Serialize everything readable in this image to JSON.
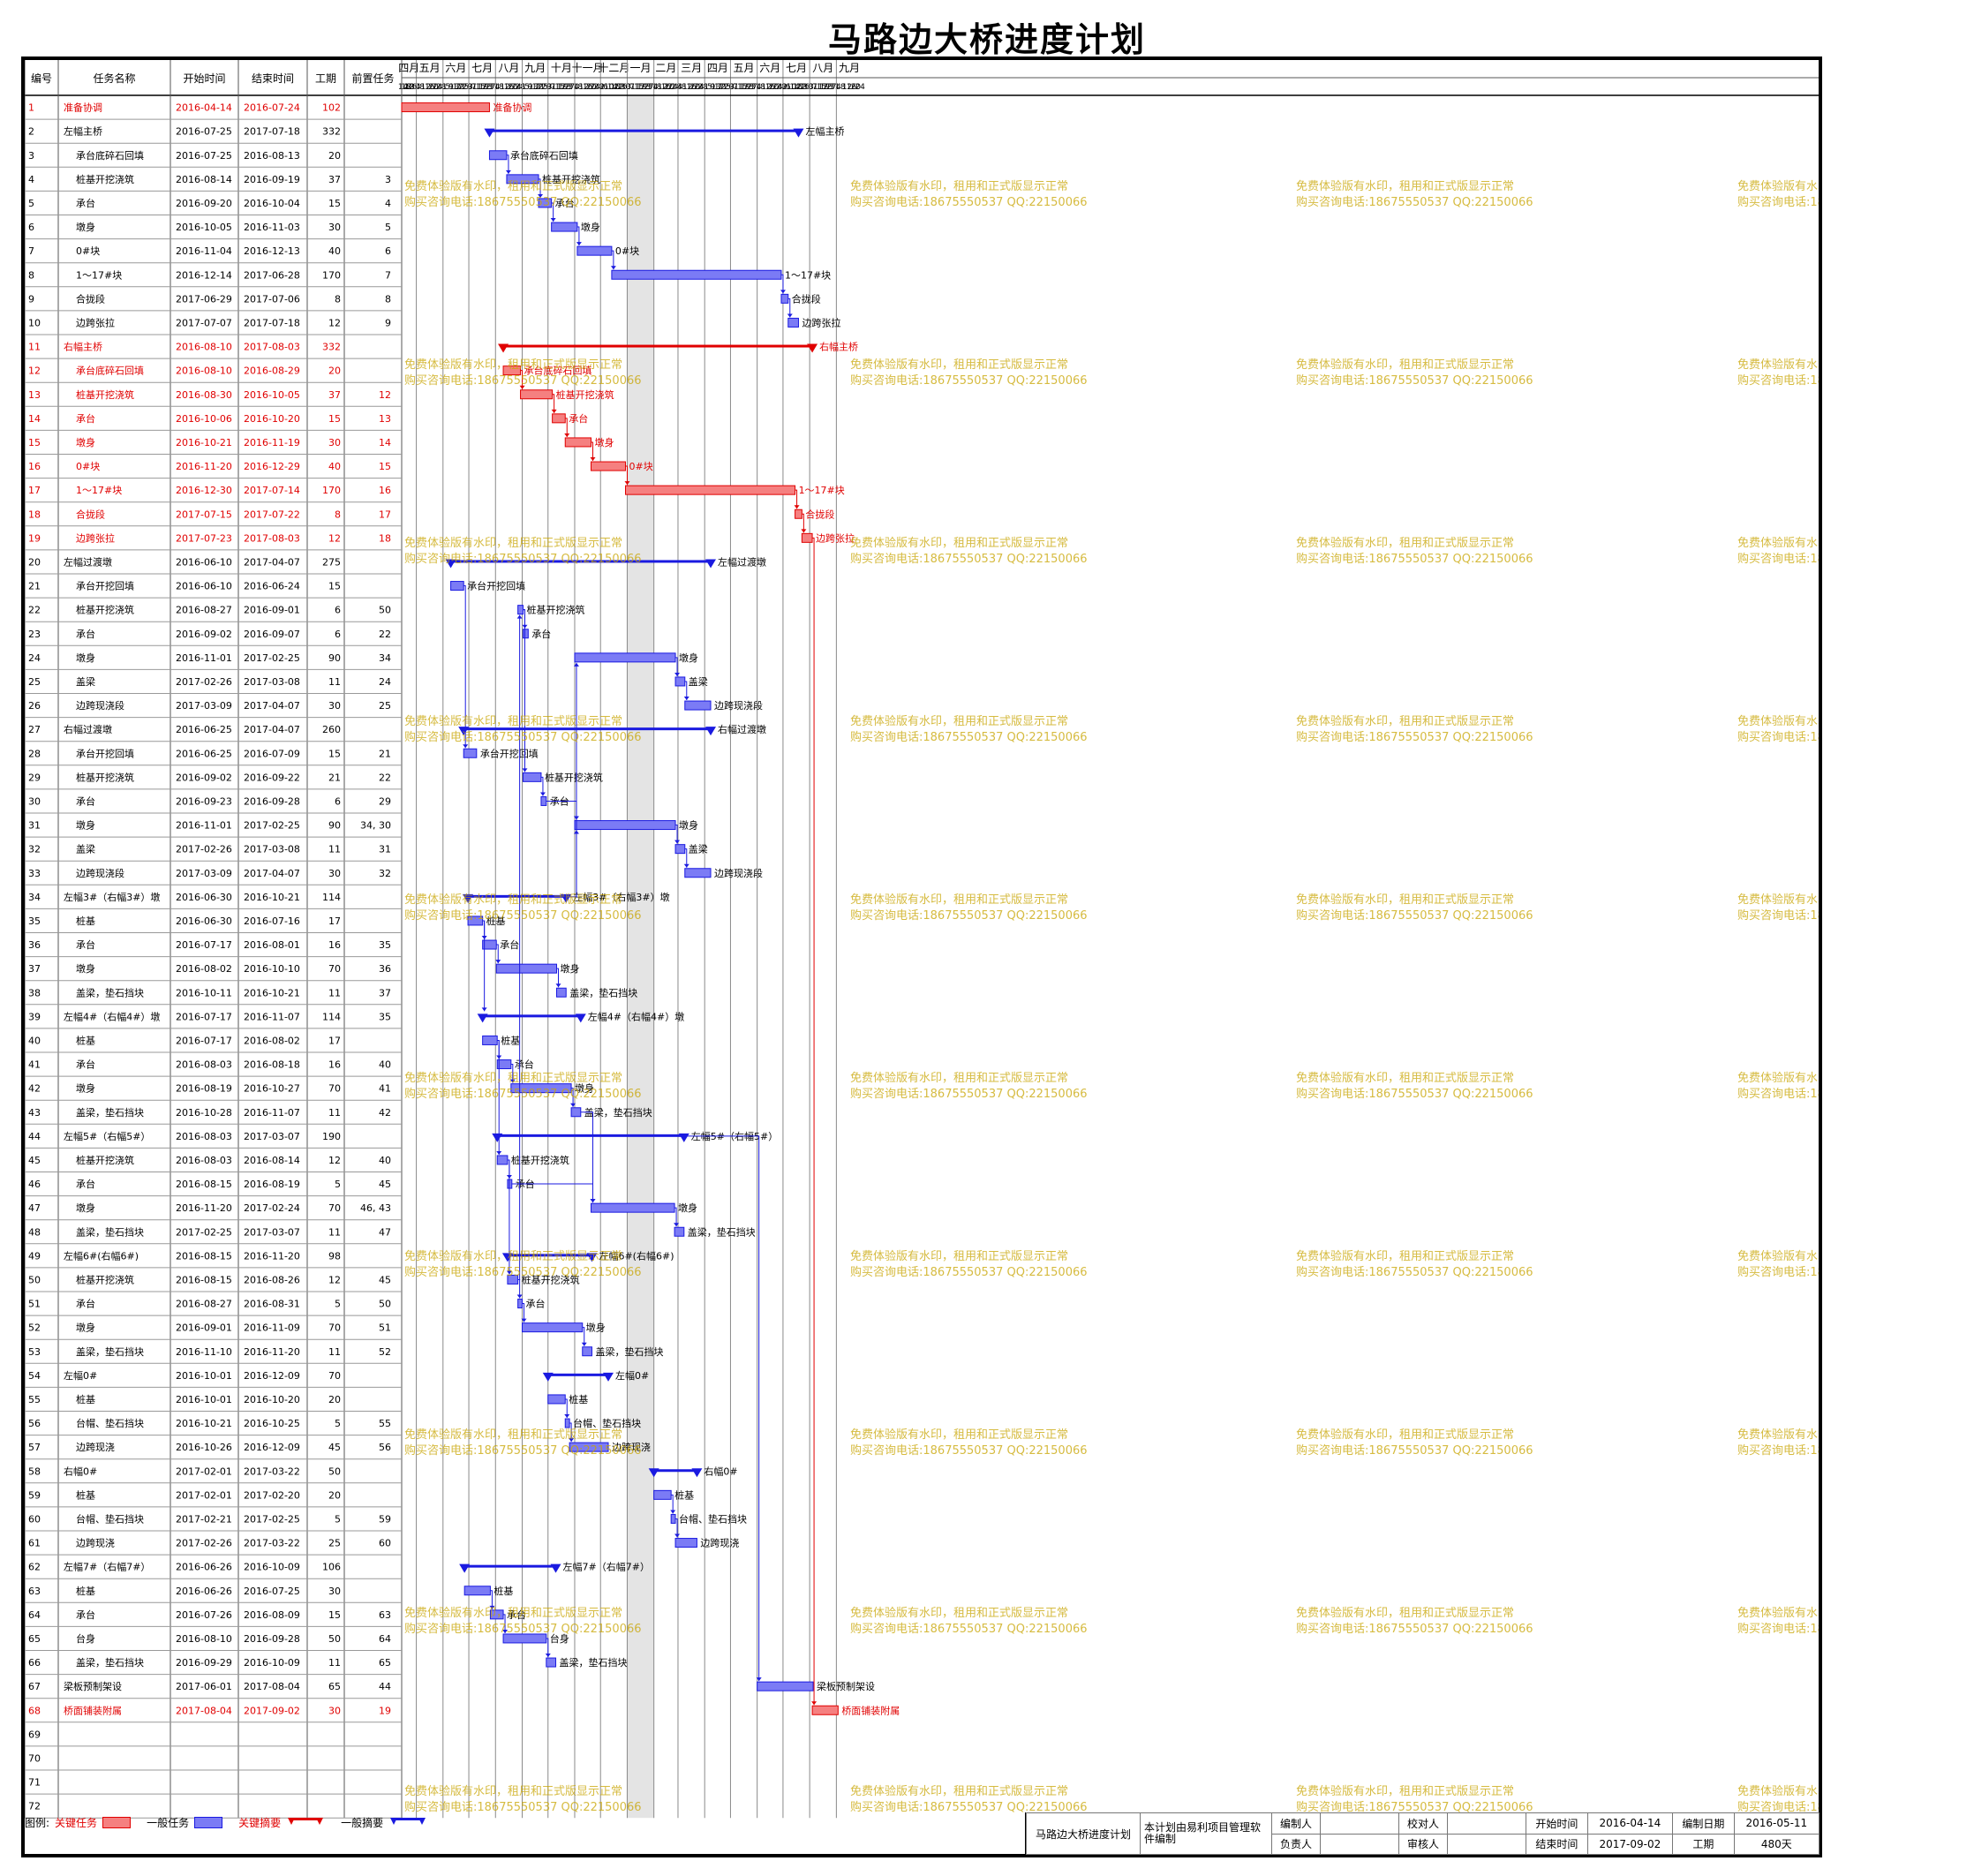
{
  "title": "马路边大桥进度计划",
  "columns": [
    "编号",
    "任务名称",
    "开始时间",
    "结束时间",
    "工期",
    "前置任务"
  ],
  "chart_data": {
    "type": "gantt",
    "timeline_start": "2016-04-14",
    "months": [
      {
        "label": "四月",
        "ticks": [
          "14",
          "18",
          "22",
          "26",
          "30"
        ]
      },
      {
        "label": "五月",
        "ticks": [
          "4",
          "8",
          "12",
          "16",
          "20",
          "24",
          "28"
        ]
      },
      {
        "label": "六月",
        "ticks": [
          "1",
          "5",
          "9",
          "13",
          "17",
          "21",
          "25",
          "29"
        ]
      },
      {
        "label": "七月",
        "ticks": [
          "3",
          "7",
          "11",
          "15",
          "19",
          "23",
          "27",
          "31"
        ]
      },
      {
        "label": "八月",
        "ticks": [
          "4",
          "8",
          "12",
          "16",
          "20",
          "24",
          "28"
        ]
      },
      {
        "label": "九月",
        "ticks": [
          "1",
          "5",
          "9",
          "13",
          "17",
          "21",
          "25",
          "29"
        ]
      },
      {
        "label": "十月",
        "ticks": [
          "3",
          "7",
          "11",
          "15",
          "19",
          "23",
          "27",
          "31"
        ]
      },
      {
        "label": "十一月",
        "ticks": [
          "4",
          "8",
          "12",
          "16",
          "20",
          "24",
          "28"
        ]
      },
      {
        "label": "十二月",
        "ticks": [
          "2",
          "6",
          "10",
          "14",
          "18",
          "22",
          "26",
          "30"
        ]
      },
      {
        "label": "一月",
        "ticks": [
          "3",
          "7",
          "11",
          "15",
          "19",
          "23",
          "27",
          "31"
        ]
      },
      {
        "label": "二月",
        "ticks": [
          "4",
          "8",
          "12",
          "16",
          "20",
          "24",
          "28"
        ]
      },
      {
        "label": "三月",
        "ticks": [
          "4",
          "8",
          "12",
          "16",
          "20",
          "24",
          "28"
        ]
      },
      {
        "label": "四月",
        "ticks": [
          "1",
          "5",
          "9",
          "13",
          "17",
          "21",
          "25",
          "29"
        ]
      },
      {
        "label": "五月",
        "ticks": [
          "3",
          "7",
          "11",
          "15",
          "19",
          "23",
          "27",
          "31"
        ]
      },
      {
        "label": "六月",
        "ticks": [
          "4",
          "8",
          "12",
          "16",
          "20",
          "24",
          "28"
        ]
      },
      {
        "label": "七月",
        "ticks": [
          "2",
          "6",
          "10",
          "14",
          "18",
          "22",
          "26",
          "30"
        ]
      },
      {
        "label": "八月",
        "ticks": [
          "3",
          "7",
          "11",
          "15",
          "19",
          "23",
          "27",
          "31"
        ]
      },
      {
        "label": "九月",
        "ticks": [
          "4",
          "8",
          "12",
          "16",
          "20",
          "24"
        ]
      }
    ],
    "nonwork": {
      "start": "2017-01-01",
      "end": "2017-02-01"
    },
    "tasks": [
      {
        "id": "1",
        "name": "准备协调",
        "start": "2016-04-14",
        "end": "2016-07-24",
        "dur": "102",
        "pred": "",
        "kind": "critical",
        "indent": 1
      },
      {
        "id": "2",
        "name": "左幅主桥",
        "start": "2016-07-25",
        "end": "2017-07-18",
        "dur": "332",
        "pred": "",
        "kind": "summary",
        "indent": 1
      },
      {
        "id": "3",
        "name": "承台底碎石回填",
        "start": "2016-07-25",
        "end": "2016-08-13",
        "dur": "20",
        "pred": "",
        "kind": "normal",
        "indent": 2
      },
      {
        "id": "4",
        "name": "桩基开挖浇筑",
        "start": "2016-08-14",
        "end": "2016-09-19",
        "dur": "37",
        "pred": "3",
        "kind": "normal",
        "indent": 2
      },
      {
        "id": "5",
        "name": "承台",
        "start": "2016-09-20",
        "end": "2016-10-04",
        "dur": "15",
        "pred": "4",
        "kind": "normal",
        "indent": 2
      },
      {
        "id": "6",
        "name": "墩身",
        "start": "2016-10-05",
        "end": "2016-11-03",
        "dur": "30",
        "pred": "5",
        "kind": "normal",
        "indent": 2
      },
      {
        "id": "7",
        "name": "0#块",
        "start": "2016-11-04",
        "end": "2016-12-13",
        "dur": "40",
        "pred": "6",
        "kind": "normal",
        "indent": 2
      },
      {
        "id": "8",
        "name": "1～17#块",
        "start": "2016-12-14",
        "end": "2017-06-28",
        "dur": "170",
        "pred": "7",
        "kind": "normal",
        "indent": 2
      },
      {
        "id": "9",
        "name": "合拢段",
        "start": "2017-06-29",
        "end": "2017-07-06",
        "dur": "8",
        "pred": "8",
        "kind": "normal",
        "indent": 2
      },
      {
        "id": "10",
        "name": "边跨张拉",
        "start": "2017-07-07",
        "end": "2017-07-18",
        "dur": "12",
        "pred": "9",
        "kind": "normal",
        "indent": 2
      },
      {
        "id": "11",
        "name": "右幅主桥",
        "start": "2016-08-10",
        "end": "2017-08-03",
        "dur": "332",
        "pred": "",
        "kind": "crit_summary",
        "indent": 1
      },
      {
        "id": "12",
        "name": "承台底碎石回填",
        "start": "2016-08-10",
        "end": "2016-08-29",
        "dur": "20",
        "pred": "",
        "kind": "critical",
        "indent": 2
      },
      {
        "id": "13",
        "name": "桩基开挖浇筑",
        "start": "2016-08-30",
        "end": "2016-10-05",
        "dur": "37",
        "pred": "12",
        "kind": "critical",
        "indent": 2
      },
      {
        "id": "14",
        "name": "承台",
        "start": "2016-10-06",
        "end": "2016-10-20",
        "dur": "15",
        "pred": "13",
        "kind": "critical",
        "indent": 2
      },
      {
        "id": "15",
        "name": "墩身",
        "start": "2016-10-21",
        "end": "2016-11-19",
        "dur": "30",
        "pred": "14",
        "kind": "critical",
        "indent": 2
      },
      {
        "id": "16",
        "name": "0#块",
        "start": "2016-11-20",
        "end": "2016-12-29",
        "dur": "40",
        "pred": "15",
        "kind": "critical",
        "indent": 2
      },
      {
        "id": "17",
        "name": "1～17#块",
        "start": "2016-12-30",
        "end": "2017-07-14",
        "dur": "170",
        "pred": "16",
        "kind": "critical",
        "indent": 2
      },
      {
        "id": "18",
        "name": "合拢段",
        "start": "2017-07-15",
        "end": "2017-07-22",
        "dur": "8",
        "pred": "17",
        "kind": "critical",
        "indent": 2
      },
      {
        "id": "19",
        "name": "边跨张拉",
        "start": "2017-07-23",
        "end": "2017-08-03",
        "dur": "12",
        "pred": "18",
        "kind": "critical",
        "indent": 2
      },
      {
        "id": "20",
        "name": "左幅过渡墩",
        "start": "2016-06-10",
        "end": "2017-04-07",
        "dur": "275",
        "pred": "",
        "kind": "summary",
        "indent": 1
      },
      {
        "id": "21",
        "name": "承台开挖回填",
        "start": "2016-06-10",
        "end": "2016-06-24",
        "dur": "15",
        "pred": "",
        "kind": "normal",
        "indent": 2
      },
      {
        "id": "22",
        "name": "桩基开挖浇筑",
        "start": "2016-08-27",
        "end": "2016-09-01",
        "dur": "6",
        "pred": "50",
        "kind": "normal",
        "indent": 2
      },
      {
        "id": "23",
        "name": "承台",
        "start": "2016-09-02",
        "end": "2016-09-07",
        "dur": "6",
        "pred": "22",
        "kind": "normal",
        "indent": 2
      },
      {
        "id": "24",
        "name": "墩身",
        "start": "2016-11-01",
        "end": "2017-02-25",
        "dur": "90",
        "pred": "34",
        "kind": "normal",
        "indent": 2
      },
      {
        "id": "25",
        "name": "盖梁",
        "start": "2017-02-26",
        "end": "2017-03-08",
        "dur": "11",
        "pred": "24",
        "kind": "normal",
        "indent": 2
      },
      {
        "id": "26",
        "name": "边跨现浇段",
        "start": "2017-03-09",
        "end": "2017-04-07",
        "dur": "30",
        "pred": "25",
        "kind": "normal",
        "indent": 2
      },
      {
        "id": "27",
        "name": "右幅过渡墩",
        "start": "2016-06-25",
        "end": "2017-04-07",
        "dur": "260",
        "pred": "",
        "kind": "summary",
        "indent": 1
      },
      {
        "id": "28",
        "name": "承台开挖回填",
        "start": "2016-06-25",
        "end": "2016-07-09",
        "dur": "15",
        "pred": "21",
        "kind": "normal",
        "indent": 2
      },
      {
        "id": "29",
        "name": "桩基开挖浇筑",
        "start": "2016-09-02",
        "end": "2016-09-22",
        "dur": "21",
        "pred": "22",
        "kind": "normal",
        "indent": 2
      },
      {
        "id": "30",
        "name": "承台",
        "start": "2016-09-23",
        "end": "2016-09-28",
        "dur": "6",
        "pred": "29",
        "kind": "normal",
        "indent": 2
      },
      {
        "id": "31",
        "name": "墩身",
        "start": "2016-11-01",
        "end": "2017-02-25",
        "dur": "90",
        "pred": "34, 30",
        "kind": "normal",
        "indent": 2
      },
      {
        "id": "32",
        "name": "盖梁",
        "start": "2017-02-26",
        "end": "2017-03-08",
        "dur": "11",
        "pred": "31",
        "kind": "normal",
        "indent": 2
      },
      {
        "id": "33",
        "name": "边跨现浇段",
        "start": "2017-03-09",
        "end": "2017-04-07",
        "dur": "30",
        "pred": "32",
        "kind": "normal",
        "indent": 2
      },
      {
        "id": "34",
        "name": "左幅3#（右幅3#）墩",
        "start": "2016-06-30",
        "end": "2016-10-21",
        "dur": "114",
        "pred": "",
        "kind": "summary",
        "indent": 1
      },
      {
        "id": "35",
        "name": "桩基",
        "start": "2016-06-30",
        "end": "2016-07-16",
        "dur": "17",
        "pred": "",
        "kind": "normal",
        "indent": 2
      },
      {
        "id": "36",
        "name": "承台",
        "start": "2016-07-17",
        "end": "2016-08-01",
        "dur": "16",
        "pred": "35",
        "kind": "normal",
        "indent": 2
      },
      {
        "id": "37",
        "name": "墩身",
        "start": "2016-08-02",
        "end": "2016-10-10",
        "dur": "70",
        "pred": "36",
        "kind": "normal",
        "indent": 2
      },
      {
        "id": "38",
        "name": "盖梁，垫石挡块",
        "start": "2016-10-11",
        "end": "2016-10-21",
        "dur": "11",
        "pred": "37",
        "kind": "normal",
        "indent": 2
      },
      {
        "id": "39",
        "name": "左幅4#（右幅4#）墩",
        "start": "2016-07-17",
        "end": "2016-11-07",
        "dur": "114",
        "pred": "35",
        "kind": "summary",
        "indent": 1
      },
      {
        "id": "40",
        "name": "桩基",
        "start": "2016-07-17",
        "end": "2016-08-02",
        "dur": "17",
        "pred": "",
        "kind": "normal",
        "indent": 2
      },
      {
        "id": "41",
        "name": "承台",
        "start": "2016-08-03",
        "end": "2016-08-18",
        "dur": "16",
        "pred": "40",
        "kind": "normal",
        "indent": 2
      },
      {
        "id": "42",
        "name": "墩身",
        "start": "2016-08-19",
        "end": "2016-10-27",
        "dur": "70",
        "pred": "41",
        "kind": "normal",
        "indent": 2
      },
      {
        "id": "43",
        "name": "盖梁，垫石挡块",
        "start": "2016-10-28",
        "end": "2016-11-07",
        "dur": "11",
        "pred": "42",
        "kind": "normal",
        "indent": 2
      },
      {
        "id": "44",
        "name": "左幅5#（右幅5#）",
        "start": "2016-08-03",
        "end": "2017-03-07",
        "dur": "190",
        "pred": "",
        "kind": "summary",
        "indent": 1
      },
      {
        "id": "45",
        "name": "桩基开挖浇筑",
        "start": "2016-08-03",
        "end": "2016-08-14",
        "dur": "12",
        "pred": "40",
        "kind": "normal",
        "indent": 2
      },
      {
        "id": "46",
        "name": "承台",
        "start": "2016-08-15",
        "end": "2016-08-19",
        "dur": "5",
        "pred": "45",
        "kind": "normal",
        "indent": 2
      },
      {
        "id": "47",
        "name": "墩身",
        "start": "2016-11-20",
        "end": "2017-02-24",
        "dur": "70",
        "pred": "46, 43",
        "kind": "normal",
        "indent": 2
      },
      {
        "id": "48",
        "name": "盖梁，垫石挡块",
        "start": "2017-02-25",
        "end": "2017-03-07",
        "dur": "11",
        "pred": "47",
        "kind": "normal",
        "indent": 2
      },
      {
        "id": "49",
        "name": "左幅6#(右幅6#)",
        "start": "2016-08-15",
        "end": "2016-11-20",
        "dur": "98",
        "pred": "",
        "kind": "summary",
        "indent": 1
      },
      {
        "id": "50",
        "name": "桩基开挖浇筑",
        "start": "2016-08-15",
        "end": "2016-08-26",
        "dur": "12",
        "pred": "45",
        "kind": "normal",
        "indent": 2
      },
      {
        "id": "51",
        "name": "承台",
        "start": "2016-08-27",
        "end": "2016-08-31",
        "dur": "5",
        "pred": "50",
        "kind": "normal",
        "indent": 2
      },
      {
        "id": "52",
        "name": "墩身",
        "start": "2016-09-01",
        "end": "2016-11-09",
        "dur": "70",
        "pred": "51",
        "kind": "normal",
        "indent": 2
      },
      {
        "id": "53",
        "name": "盖梁，垫石挡块",
        "start": "2016-11-10",
        "end": "2016-11-20",
        "dur": "11",
        "pred": "52",
        "kind": "normal",
        "indent": 2
      },
      {
        "id": "54",
        "name": "左幅0#",
        "start": "2016-10-01",
        "end": "2016-12-09",
        "dur": "70",
        "pred": "",
        "kind": "summary",
        "indent": 1
      },
      {
        "id": "55",
        "name": "桩基",
        "start": "2016-10-01",
        "end": "2016-10-20",
        "dur": "20",
        "pred": "",
        "kind": "normal",
        "indent": 2
      },
      {
        "id": "56",
        "name": "台帽、垫石挡块",
        "start": "2016-10-21",
        "end": "2016-10-25",
        "dur": "5",
        "pred": "55",
        "kind": "normal",
        "indent": 2
      },
      {
        "id": "57",
        "name": "边跨现浇",
        "start": "2016-10-26",
        "end": "2016-12-09",
        "dur": "45",
        "pred": "56",
        "kind": "normal",
        "indent": 2
      },
      {
        "id": "58",
        "name": "右幅0#",
        "start": "2017-02-01",
        "end": "2017-03-22",
        "dur": "50",
        "pred": "",
        "kind": "summary",
        "indent": 1
      },
      {
        "id": "59",
        "name": "桩基",
        "start": "2017-02-01",
        "end": "2017-02-20",
        "dur": "20",
        "pred": "",
        "kind": "normal",
        "indent": 2
      },
      {
        "id": "60",
        "name": "台帽、垫石挡块",
        "start": "2017-02-21",
        "end": "2017-02-25",
        "dur": "5",
        "pred": "59",
        "kind": "normal",
        "indent": 2
      },
      {
        "id": "61",
        "name": "边跨现浇",
        "start": "2017-02-26",
        "end": "2017-03-22",
        "dur": "25",
        "pred": "60",
        "kind": "normal",
        "indent": 2
      },
      {
        "id": "62",
        "name": "左幅7#（右幅7#）",
        "start": "2016-06-26",
        "end": "2016-10-09",
        "dur": "106",
        "pred": "",
        "kind": "summary",
        "indent": 1
      },
      {
        "id": "63",
        "name": "桩基",
        "start": "2016-06-26",
        "end": "2016-07-25",
        "dur": "30",
        "pred": "",
        "kind": "normal",
        "indent": 2
      },
      {
        "id": "64",
        "name": "承台",
        "start": "2016-07-26",
        "end": "2016-08-09",
        "dur": "15",
        "pred": "63",
        "kind": "normal",
        "indent": 2
      },
      {
        "id": "65",
        "name": "台身",
        "start": "2016-08-10",
        "end": "2016-09-28",
        "dur": "50",
        "pred": "64",
        "kind": "normal",
        "indent": 2
      },
      {
        "id": "66",
        "name": "盖梁，垫石挡块",
        "start": "2016-09-29",
        "end": "2016-10-09",
        "dur": "11",
        "pred": "65",
        "kind": "normal",
        "indent": 2
      },
      {
        "id": "67",
        "name": "梁板预制架设",
        "start": "2017-06-01",
        "end": "2017-08-04",
        "dur": "65",
        "pred": "44",
        "kind": "normal",
        "indent": 1
      },
      {
        "id": "68",
        "name": "桥面铺装附属",
        "start": "2017-08-04",
        "end": "2017-09-02",
        "dur": "30",
        "pred": "19",
        "kind": "critical",
        "indent": 1
      },
      {
        "id": "69",
        "name": "",
        "start": "",
        "end": "",
        "dur": "",
        "pred": "",
        "kind": "empty",
        "indent": 1
      },
      {
        "id": "70",
        "name": "",
        "start": "",
        "end": "",
        "dur": "",
        "pred": "",
        "kind": "empty",
        "indent": 1
      },
      {
        "id": "71",
        "name": "",
        "start": "",
        "end": "",
        "dur": "",
        "pred": "",
        "kind": "empty",
        "indent": 1
      },
      {
        "id": "72",
        "name": "",
        "start": "",
        "end": "",
        "dur": "",
        "pred": "",
        "kind": "empty",
        "indent": 1
      }
    ],
    "colors": {
      "critical_fill": "#f58080",
      "critical_line": "#e00000",
      "normal_fill": "#7b7bf5",
      "normal_line": "#1a1ae0",
      "critical_text": "#e00000",
      "grid": "#8a8a8a",
      "nonwork": "#e4e4e4"
    }
  },
  "watermark": {
    "line1": "免费体验版有水印，租用和正式版显示正常",
    "line2": "购买咨询电话:18675550537 QQ:22150066"
  },
  "legend": {
    "prefix": "图例:",
    "critical": "关键任务",
    "normal": "一般任务",
    "critical_summary": "关键摘要",
    "normal_summary": "一般摘要"
  },
  "footer": {
    "project": "马路边大桥进度计划",
    "software_note": "本计划由易利项目管理软件编制",
    "compiler_label": "编制人",
    "checker_label": "校对人",
    "start_label": "开始时间",
    "start_value": "2016-04-14",
    "date_label": "编制日期",
    "date_value": "2016-05-11",
    "owner_label": "负责人",
    "auditor_label": "审核人",
    "end_label": "结束时间",
    "end_value": "2017-09-02",
    "duration_label": "工期",
    "duration_value": "480天"
  }
}
